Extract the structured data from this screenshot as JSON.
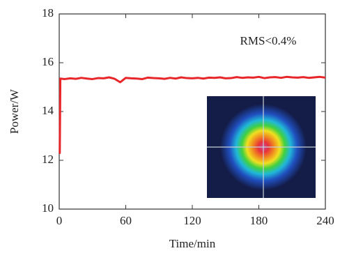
{
  "chart_data": {
    "type": "line",
    "x_label": "Time/min",
    "y_label": "Power/W",
    "annotation": "RMS<0.4%",
    "x": [
      0,
      0.5,
      1,
      5,
      10,
      15,
      20,
      25,
      30,
      35,
      40,
      45,
      50,
      55,
      60,
      65,
      70,
      75,
      80,
      85,
      90,
      95,
      100,
      105,
      110,
      115,
      120,
      125,
      130,
      135,
      140,
      145,
      150,
      155,
      160,
      165,
      170,
      175,
      180,
      185,
      190,
      195,
      200,
      205,
      210,
      215,
      220,
      225,
      230,
      235,
      240
    ],
    "values": [
      12.3,
      12.3,
      15.35,
      15.33,
      15.36,
      15.34,
      15.38,
      15.35,
      15.33,
      15.37,
      15.36,
      15.4,
      15.34,
      15.2,
      15.38,
      15.36,
      15.35,
      15.33,
      15.39,
      15.37,
      15.36,
      15.34,
      15.38,
      15.35,
      15.4,
      15.37,
      15.36,
      15.38,
      15.35,
      15.39,
      15.38,
      15.4,
      15.36,
      15.37,
      15.41,
      15.38,
      15.4,
      15.39,
      15.42,
      15.37,
      15.4,
      15.41,
      15.38,
      15.42,
      15.4,
      15.39,
      15.41,
      15.38,
      15.4,
      15.42,
      15.39
    ],
    "color": "#e8262a",
    "xlim": [
      0,
      240
    ],
    "xticks": [
      0,
      60,
      120,
      180,
      240
    ],
    "ylim": [
      10,
      18
    ],
    "yticks": [
      10,
      12,
      14,
      16,
      18
    ]
  }
}
